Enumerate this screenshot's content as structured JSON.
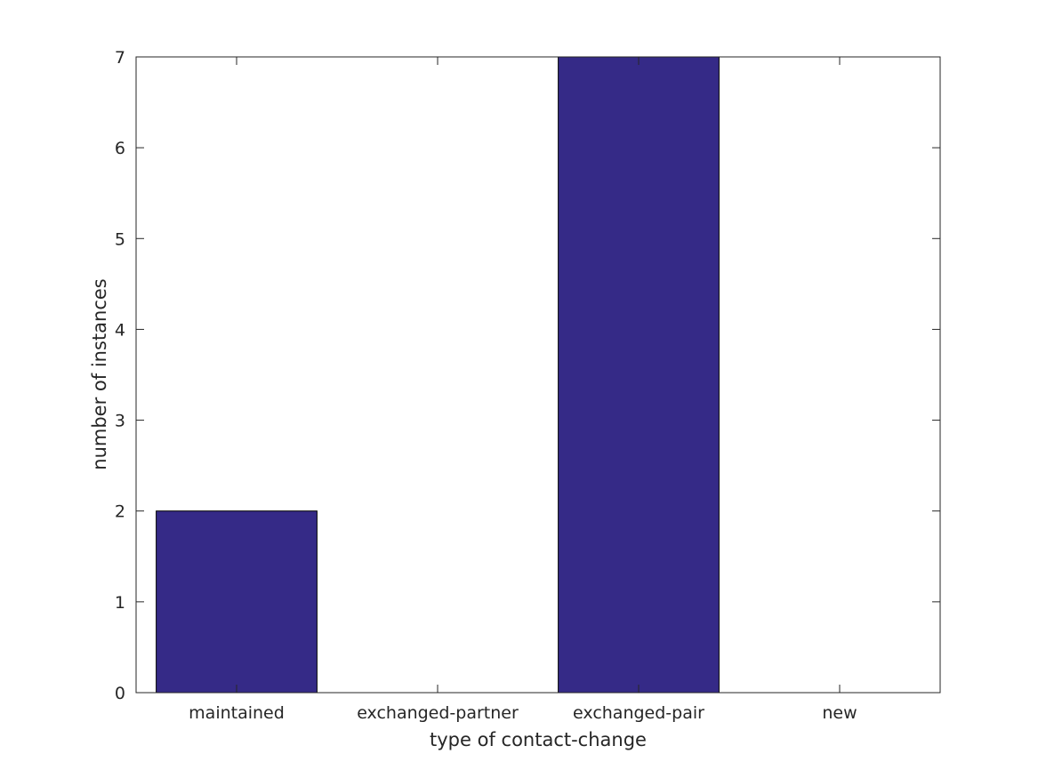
{
  "chart_data": {
    "type": "bar",
    "categories": [
      "maintained",
      "exchanged-partner",
      "exchanged-pair",
      "new"
    ],
    "values": [
      2,
      0,
      7,
      0
    ],
    "xlabel": "type of contact-change",
    "ylabel": "number of instances",
    "ylim": [
      0,
      7
    ],
    "yticks": [
      0,
      1,
      2,
      3,
      4,
      5,
      6,
      7
    ],
    "grid": false,
    "bar_color": "#352a87",
    "axis_color": "#262626"
  }
}
